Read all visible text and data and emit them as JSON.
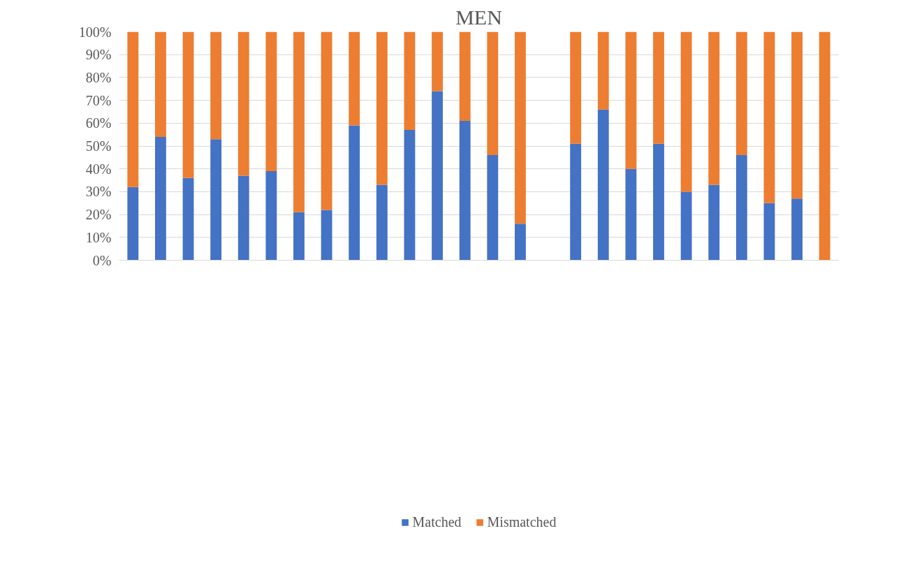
{
  "chart_data": {
    "type": "bar",
    "title": "MEN",
    "stacked": true,
    "categories": [
      null,
      null,
      null,
      null,
      null,
      null,
      null,
      null,
      null,
      null,
      null,
      null,
      null,
      null,
      null,
      null,
      null,
      null,
      null,
      null,
      null,
      null,
      null,
      null,
      null,
      null
    ],
    "series": [
      {
        "name": "Matched",
        "color": "#4472c4",
        "values": [
          32,
          54,
          36,
          53,
          37,
          39,
          21,
          22,
          59,
          33,
          57,
          74,
          61,
          46,
          16,
          null,
          51,
          66,
          40,
          51,
          30,
          33,
          46,
          25,
          27,
          0
        ]
      },
      {
        "name": "Mismatched",
        "color": "#ed7d31",
        "values": [
          68,
          46,
          64,
          47,
          63,
          61,
          79,
          78,
          41,
          67,
          43,
          26,
          39,
          54,
          84,
          null,
          49,
          34,
          60,
          49,
          70,
          67,
          54,
          75,
          73,
          100
        ]
      }
    ],
    "ylim": [
      0,
      100
    ],
    "yticks": [
      {
        "value": 0,
        "label": "0%"
      },
      {
        "value": 10,
        "label": "10%"
      },
      {
        "value": 20,
        "label": "20%"
      },
      {
        "value": 30,
        "label": "30%"
      },
      {
        "value": 40,
        "label": "40%"
      },
      {
        "value": 50,
        "label": "50%"
      },
      {
        "value": 60,
        "label": "60%"
      },
      {
        "value": 70,
        "label": "70%"
      },
      {
        "value": 80,
        "label": "80%"
      },
      {
        "value": 90,
        "label": "90%"
      },
      {
        "value": 100,
        "label": "100%"
      }
    ],
    "tick_labels": "y",
    "grid": "y",
    "legend": "bottom"
  }
}
